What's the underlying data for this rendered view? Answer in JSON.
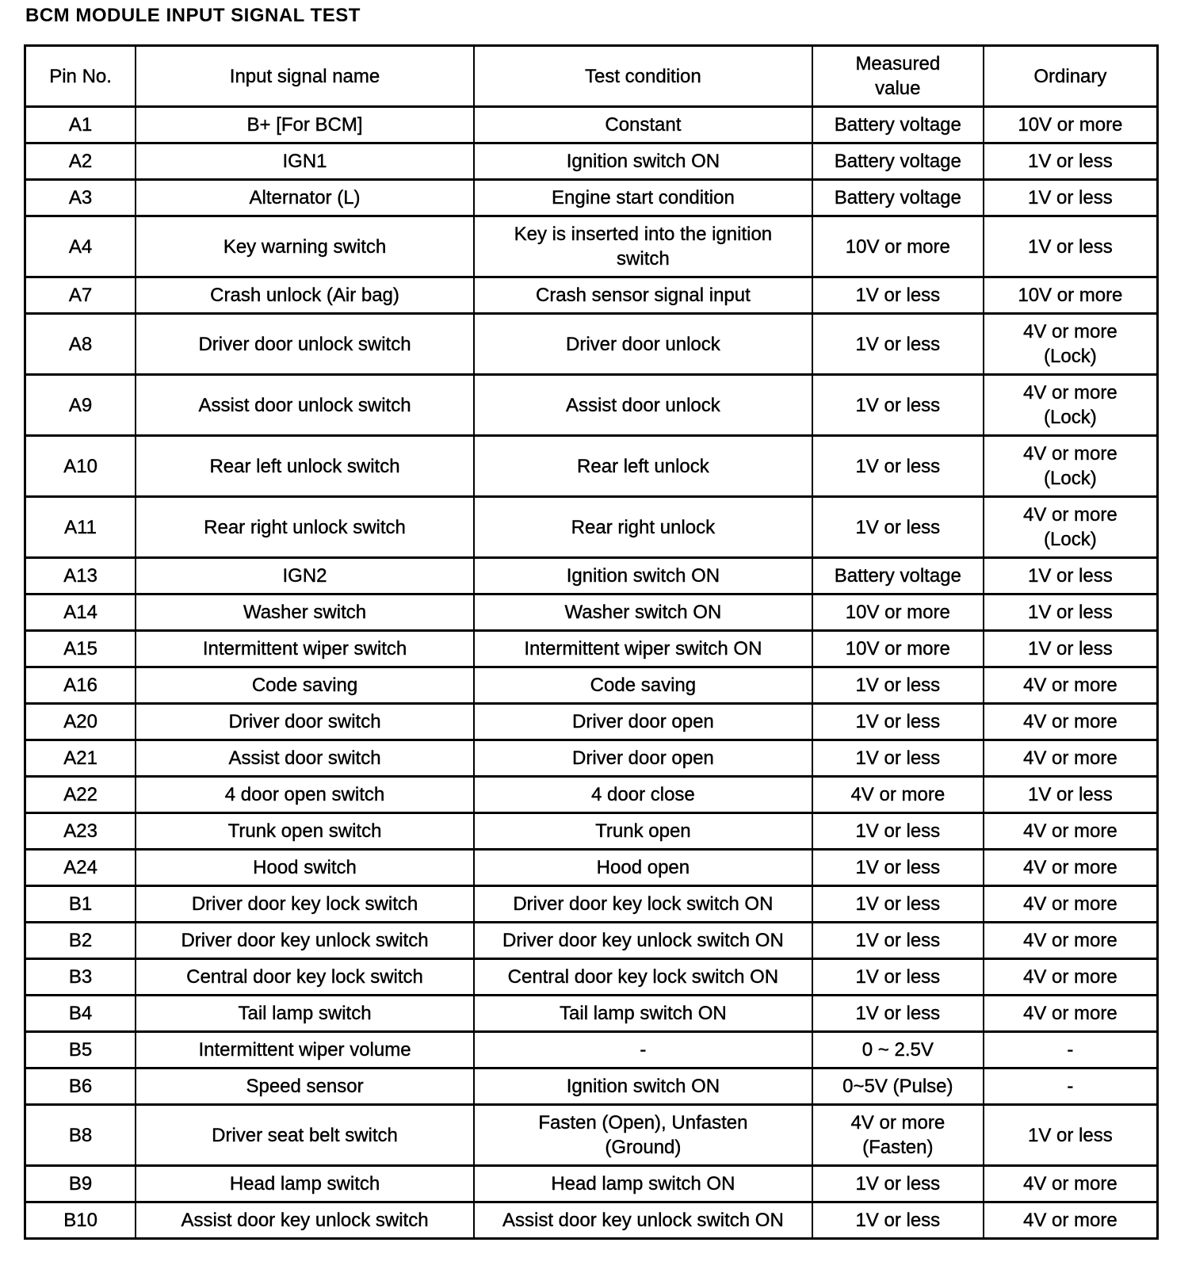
{
  "title": "BCM MODULE INPUT SIGNAL TEST",
  "table": {
    "headers": [
      "Pin No.",
      "Input signal name",
      "Test condition",
      "Measured value",
      "Ordinary"
    ],
    "rows": [
      [
        "A1",
        "B+ [For BCM]",
        "Constant",
        "Battery voltage",
        "10V or more"
      ],
      [
        "A2",
        "IGN1",
        "Ignition switch ON",
        "Battery voltage",
        "1V or less"
      ],
      [
        "A3",
        "Alternator (L)",
        "Engine start condition",
        "Battery voltage",
        "1V or less"
      ],
      [
        "A4",
        "Key warning switch",
        "Key is inserted into the ignition switch",
        "10V or more",
        "1V or less"
      ],
      [
        "A7",
        "Crash unlock (Air bag)",
        "Crash sensor signal input",
        "1V or less",
        "10V or more"
      ],
      [
        "A8",
        "Driver door unlock switch",
        "Driver door unlock",
        "1V or less",
        "4V or more (Lock)"
      ],
      [
        "A9",
        "Assist door unlock switch",
        "Assist door unlock",
        "1V or less",
        "4V or more (Lock)"
      ],
      [
        "A10",
        "Rear left unlock switch",
        "Rear left unlock",
        "1V or less",
        "4V or more (Lock)"
      ],
      [
        "A11",
        "Rear right unlock switch",
        "Rear right unlock",
        "1V or less",
        "4V or more (Lock)"
      ],
      [
        "A13",
        "IGN2",
        "Ignition switch ON",
        "Battery voltage",
        "1V or less"
      ],
      [
        "A14",
        "Washer switch",
        "Washer switch ON",
        "10V or more",
        "1V or less"
      ],
      [
        "A15",
        "Intermittent wiper switch",
        "Intermittent wiper switch ON",
        "10V or more",
        "1V or less"
      ],
      [
        "A16",
        "Code saving",
        "Code saving",
        "1V or less",
        "4V or more"
      ],
      [
        "A20",
        "Driver door switch",
        "Driver door open",
        "1V or less",
        "4V or more"
      ],
      [
        "A21",
        "Assist door switch",
        "Driver door open",
        "1V or less",
        "4V or more"
      ],
      [
        "A22",
        "4 door open switch",
        "4 door close",
        "4V or more",
        "1V or less"
      ],
      [
        "A23",
        "Trunk open switch",
        "Trunk open",
        "1V or less",
        "4V or more"
      ],
      [
        "A24",
        "Hood switch",
        "Hood open",
        "1V or less",
        "4V or more"
      ],
      [
        "B1",
        "Driver door key lock switch",
        "Driver door key lock switch ON",
        "1V or less",
        "4V or more"
      ],
      [
        "B2",
        "Driver door key unlock switch",
        "Driver door key unlock switch ON",
        "1V or less",
        "4V or more"
      ],
      [
        "B3",
        "Central door key lock switch",
        "Central door key lock switch ON",
        "1V or less",
        "4V or more"
      ],
      [
        "B4",
        "Tail lamp switch",
        "Tail lamp switch ON",
        "1V or less",
        "4V or more"
      ],
      [
        "B5",
        "Intermittent wiper volume",
        "-",
        "0 ~ 2.5V",
        "-"
      ],
      [
        "B6",
        "Speed sensor",
        "Ignition switch ON",
        "0~5V (Pulse)",
        "-"
      ],
      [
        "B8",
        "Driver seat belt switch",
        "Fasten (Open), Unfasten (Ground)",
        "4V or more (Fasten)",
        "1V or less"
      ],
      [
        "B9",
        "Head lamp switch",
        "Head lamp switch ON",
        "1V or less",
        "4V or more"
      ],
      [
        "B10",
        "Assist door key unlock switch",
        "Assist door key unlock switch ON",
        "1V or less",
        "4V or more"
      ]
    ]
  }
}
